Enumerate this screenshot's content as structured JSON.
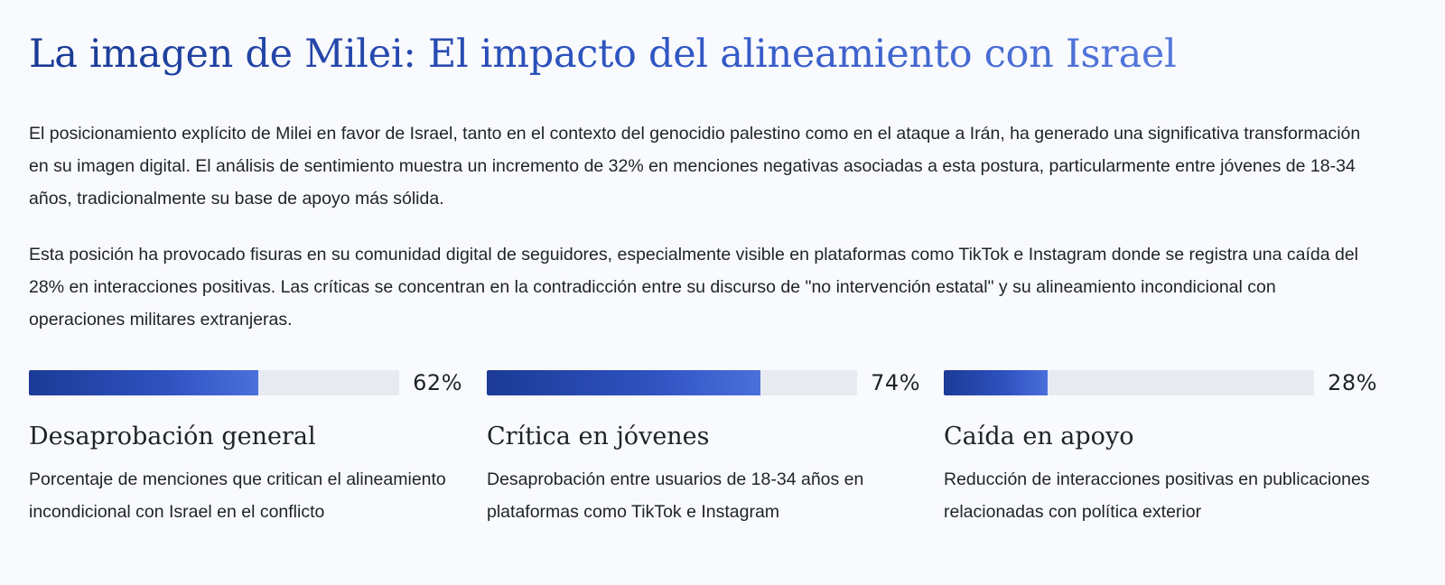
{
  "header": {
    "title": "La imagen de Milei: El impacto del alineamiento con Israel"
  },
  "body": {
    "paragraphs": [
      "El posicionamiento explícito de Milei en favor de Israel, tanto en el contexto del genocidio palestino como en el ataque a Irán, ha generado una significativa transformación en su imagen digital. El análisis de sentimiento muestra un incremento de 32% en menciones negativas asociadas a esta postura, particularmente entre jóvenes de 18-34 años, tradicionalmente su base de apoyo más sólida.",
      "Esta posición ha provocado fisuras en su comunidad digital de seguidores, especialmente visible en plataformas como TikTok e Instagram donde se registra una caída del 28% en interacciones positivas. Las críticas se concentran en la contradicción entre su discurso de \"no intervención estatal\" y su alineamiento incondicional con operaciones militares extranjeras."
    ]
  },
  "metrics": [
    {
      "value_label": "62%",
      "percent": 62,
      "title": "Desaprobación general",
      "description": "Porcentaje de menciones que critican el alineamiento incondicional con Israel en el conflicto"
    },
    {
      "value_label": "74%",
      "percent": 74,
      "title": "Crítica en jóvenes",
      "description": "Desaprobación entre usuarios de 18-34 años en plataformas como TikTok e Instagram"
    },
    {
      "value_label": "28%",
      "percent": 28,
      "title": "Caída en apoyo",
      "description": "Reducción de interacciones positivas en publicaciones relacionadas con política exterior"
    }
  ],
  "colors": {
    "title_gradient_start": "#1a3a94",
    "title_gradient_end": "#5578dc",
    "bar_fill_start": "#1c3a96",
    "bar_fill_end": "#4a70dc",
    "bar_track": "#e8eaf2",
    "background": "#f9fafd",
    "text": "#1f2229"
  }
}
